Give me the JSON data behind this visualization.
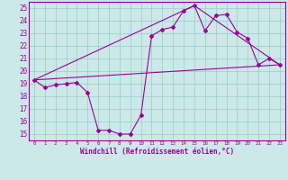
{
  "title": "",
  "xlabel": "Windchill (Refroidissement éolien,°C)",
  "ylabel": "",
  "xlim": [
    -0.5,
    23.5
  ],
  "ylim": [
    14.5,
    25.5
  ],
  "xticks": [
    0,
    1,
    2,
    3,
    4,
    5,
    6,
    7,
    8,
    9,
    10,
    11,
    12,
    13,
    14,
    15,
    16,
    17,
    18,
    19,
    20,
    21,
    22,
    23
  ],
  "yticks": [
    15,
    16,
    17,
    18,
    19,
    20,
    21,
    22,
    23,
    24,
    25
  ],
  "bg_color": "#cce8e8",
  "line_color": "#990099",
  "grid_color": "#99cccc",
  "lines": [
    {
      "x": [
        0,
        1,
        2,
        3,
        4,
        5,
        6,
        7,
        8,
        9,
        10,
        11,
        12,
        13,
        14,
        15,
        16,
        17,
        18,
        19,
        20,
        21,
        22,
        23
      ],
      "y": [
        19.3,
        18.7,
        18.9,
        19.0,
        19.1,
        18.3,
        15.3,
        15.3,
        15.0,
        15.0,
        16.5,
        22.8,
        23.3,
        23.5,
        24.8,
        25.2,
        23.2,
        24.4,
        24.5,
        23.1,
        22.6,
        20.5,
        21.0,
        20.5
      ]
    },
    {
      "x": [
        0,
        23
      ],
      "y": [
        19.3,
        20.5
      ]
    },
    {
      "x": [
        0,
        15
      ],
      "y": [
        19.3,
        25.2
      ]
    },
    {
      "x": [
        15,
        23
      ],
      "y": [
        25.2,
        20.5
      ]
    }
  ]
}
